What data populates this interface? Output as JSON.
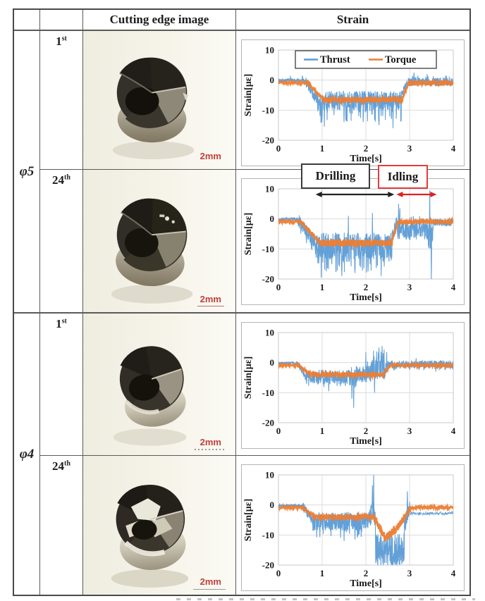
{
  "figure": {
    "header": {
      "cutting_edge": "Cutting edge image",
      "strain": "Strain"
    },
    "groups": [
      {
        "label": "φ5",
        "rows": [
          {
            "ordinal": "1",
            "suffix": "st",
            "scale": "2mm"
          },
          {
            "ordinal": "24",
            "suffix": "th",
            "scale": "2mm"
          }
        ]
      },
      {
        "label": "φ4",
        "rows": [
          {
            "ordinal": "1",
            "suffix": "st",
            "scale": "2mm"
          },
          {
            "ordinal": "24",
            "suffix": "th",
            "scale": "2mm"
          }
        ]
      }
    ]
  },
  "chart_common": {
    "ylabel": "Strain[με]",
    "xlabel": "Time[s]",
    "yticks": [
      10,
      0,
      -10,
      -20
    ],
    "xticks": [
      0,
      1,
      2,
      3,
      4
    ],
    "ylim": [
      -20,
      10
    ],
    "xlim": [
      0,
      4
    ],
    "grid": true,
    "colors": {
      "thrust": "#5B9BD5",
      "torque": "#ED7D31",
      "drilling": "#222222",
      "idling": "#E02020"
    }
  },
  "chart_data": [
    {
      "type": "line",
      "title": "phi5 1st hole strain signal",
      "legend": {
        "items": [
          "Thrust",
          "Torque"
        ],
        "position": "top-center"
      },
      "series": [
        {
          "name": "Thrust",
          "color_key": "thrust",
          "segments": [
            [
              0,
              0.62,
              -0.1,
              -0.1,
              0.6,
              0.02,
              1.8
            ],
            [
              0.62,
              0.88,
              -0.5,
              -6.5,
              1.8,
              0,
              0
            ],
            [
              0.88,
              2.82,
              -6.8,
              -6.8,
              3.2,
              0.1,
              -7.5
            ],
            [
              2.82,
              2.96,
              -5,
              -0.3,
              1.5,
              0,
              0
            ],
            [
              2.96,
              4,
              -0.6,
              -0.6,
              1.4,
              0.05,
              2.2
            ]
          ],
          "spikes": [
            {
              "t": 1.05,
              "y": -15.5
            },
            {
              "t": 1.5,
              "y": -14
            },
            {
              "t": 2.3,
              "y": -15
            },
            {
              "t": 2.62,
              "y": -16
            },
            {
              "t": 0.55,
              "y": 1.5
            },
            {
              "t": 3.1,
              "y": 2.5
            },
            {
              "t": 3.4,
              "y": 2
            }
          ]
        },
        {
          "name": "Torque",
          "color_key": "torque",
          "segments": [
            [
              0,
              0.66,
              -0.9,
              -0.9,
              0.35,
              0,
              0
            ],
            [
              0.66,
              1.02,
              -0.9,
              -6.2,
              0.6,
              0,
              0
            ],
            [
              1.02,
              2.84,
              -6.5,
              -6.5,
              0.9,
              0,
              0
            ],
            [
              2.84,
              2.98,
              -6,
              -0.9,
              0.5,
              0,
              0
            ],
            [
              2.98,
              4,
              -0.9,
              -0.9,
              0.8,
              0,
              0
            ]
          ],
          "spikes": []
        }
      ]
    },
    {
      "type": "line",
      "title": "phi5 24th hole strain signal",
      "annotations": {
        "drilling_label": "Drilling",
        "idling_label": "Idling",
        "drilling_span_s": [
          0.85,
          2.65
        ],
        "idling_span_s": [
          2.7,
          3.62
        ]
      },
      "series": [
        {
          "name": "Thrust",
          "color_key": "thrust",
          "segments": [
            [
              0,
              0.45,
              -0.1,
              -0.1,
              0.5,
              0,
              0
            ],
            [
              0.45,
              0.85,
              -0.5,
              -8,
              2.2,
              0.05,
              -4
            ],
            [
              0.85,
              2.6,
              -9,
              -9,
              4.5,
              0.13,
              -9
            ],
            [
              2.6,
              2.72,
              -6,
              -0.5,
              2,
              0,
              0
            ],
            [
              2.72,
              3.42,
              -4,
              -4,
              3.2,
              0.07,
              5
            ],
            [
              3.42,
              3.54,
              -6,
              -6,
              5,
              0,
              0
            ],
            [
              3.54,
              4,
              -1.2,
              -1.2,
              1.3,
              0,
              0
            ]
          ],
          "spikes": [
            {
              "t": 0.98,
              "y": -19.5
            },
            {
              "t": 1.45,
              "y": -19
            },
            {
              "t": 1.75,
              "y": -18
            },
            {
              "t": 2.05,
              "y": -17.5
            },
            {
              "t": 2.35,
              "y": -19
            },
            {
              "t": 1.6,
              "y": 1
            },
            {
              "t": 2.15,
              "y": 2
            },
            {
              "t": 2.75,
              "y": 5
            },
            {
              "t": 2.78,
              "y": 3.5
            },
            {
              "t": 3.46,
              "y": 9.5
            },
            {
              "t": 3.5,
              "y": -20
            }
          ]
        },
        {
          "name": "Torque",
          "color_key": "torque",
          "segments": [
            [
              0,
              0.5,
              -0.9,
              -0.9,
              0.35,
              0,
              0
            ],
            [
              0.5,
              0.95,
              -0.9,
              -7.8,
              0.7,
              0,
              0
            ],
            [
              0.95,
              2.6,
              -8,
              -8,
              1.1,
              0,
              0
            ],
            [
              2.6,
              2.74,
              -7,
              -0.9,
              0.6,
              0,
              0
            ],
            [
              2.74,
              4,
              -0.9,
              -0.9,
              0.7,
              0,
              0
            ]
          ],
          "spikes": []
        }
      ]
    },
    {
      "type": "line",
      "title": "phi4 1st hole strain signal",
      "series": [
        {
          "name": "Thrust",
          "color_key": "thrust",
          "segments": [
            [
              0,
              0.45,
              -0.2,
              -0.2,
              0.5,
              0,
              0
            ],
            [
              0.45,
              0.62,
              -0.5,
              -4.5,
              1.2,
              0,
              0
            ],
            [
              0.62,
              1.6,
              -4.8,
              -4.8,
              2.4,
              0.05,
              -3.5
            ],
            [
              1.6,
              1.78,
              -5,
              -5,
              3.5,
              0,
              0
            ],
            [
              1.78,
              2.12,
              -3.8,
              -3.8,
              2.8,
              0.07,
              5
            ],
            [
              2.12,
              2.48,
              -2.5,
              -2.5,
              3.2,
              0.1,
              7
            ],
            [
              2.48,
              4,
              -0.6,
              -0.6,
              1.3,
              0.04,
              -2
            ]
          ],
          "spikes": [
            {
              "t": 1.72,
              "y": -15
            },
            {
              "t": 1.68,
              "y": -12
            },
            {
              "t": 1.15,
              "y": -9.5
            },
            {
              "t": 2.0,
              "y": 3.5
            },
            {
              "t": 2.3,
              "y": 5
            },
            {
              "t": 2.37,
              "y": 5.5
            },
            {
              "t": 2.2,
              "y": -10
            },
            {
              "t": 3.15,
              "y": 1.5
            },
            {
              "t": 3.6,
              "y": -3
            }
          ]
        },
        {
          "name": "Torque",
          "color_key": "torque",
          "segments": [
            [
              0,
              0.46,
              -0.9,
              -0.9,
              0.3,
              0,
              0
            ],
            [
              0.46,
              0.7,
              -0.9,
              -3.8,
              0.6,
              0,
              0
            ],
            [
              0.7,
              2.42,
              -4,
              -4,
              0.8,
              0,
              0
            ],
            [
              2.42,
              2.56,
              -3.5,
              -0.9,
              0.5,
              0,
              0
            ],
            [
              2.56,
              4,
              -0.9,
              -0.9,
              0.5,
              0,
              0
            ]
          ],
          "spikes": []
        }
      ]
    },
    {
      "type": "line",
      "title": "phi4 24th hole strain signal",
      "series": [
        {
          "name": "Thrust",
          "color_key": "thrust",
          "segments": [
            [
              0,
              0.55,
              -0.2,
              -0.2,
              0.5,
              0,
              0
            ],
            [
              0.55,
              0.78,
              -0.5,
              -5,
              1.6,
              0,
              0
            ],
            [
              0.78,
              2.08,
              -5.5,
              -5.5,
              3.2,
              0.07,
              -6
            ],
            [
              2.08,
              2.22,
              -3,
              -3,
              4,
              0,
              0
            ],
            [
              2.22,
              2.88,
              -14.5,
              -14.5,
              5.5,
              0.12,
              -6
            ],
            [
              2.88,
              3.02,
              -7,
              -0.5,
              3,
              0,
              0
            ],
            [
              3.02,
              4,
              -2.8,
              -2.8,
              0.5,
              0,
              0,
              1
            ]
          ],
          "spikes": [
            {
              "t": 2.18,
              "y": 10
            },
            {
              "t": 2.15,
              "y": 6.5
            },
            {
              "t": 1.5,
              "y": -12
            },
            {
              "t": 1.75,
              "y": -11.5
            },
            {
              "t": 2.4,
              "y": -20
            },
            {
              "t": 2.5,
              "y": -20
            },
            {
              "t": 2.6,
              "y": -20
            },
            {
              "t": 2.72,
              "y": -19.5
            },
            {
              "t": 2.95,
              "y": 4.5
            }
          ]
        },
        {
          "name": "Torque",
          "color_key": "torque",
          "segments": [
            [
              0,
              0.55,
              -0.9,
              -0.9,
              0.3,
              0,
              0
            ],
            [
              0.55,
              0.8,
              -0.9,
              -3.8,
              0.6,
              0,
              0
            ],
            [
              0.8,
              2.2,
              -4,
              -4,
              0.9,
              0,
              0
            ],
            [
              2.2,
              2.45,
              -4.5,
              -11,
              1.3,
              0,
              0
            ],
            [
              2.45,
              2.7,
              -11,
              -8,
              1.4,
              0,
              0
            ],
            [
              2.7,
              3.02,
              -8,
              -1,
              1.1,
              0,
              0
            ],
            [
              3.02,
              4,
              -0.9,
              -0.9,
              0.45,
              0,
              0
            ]
          ],
          "spikes": []
        }
      ]
    }
  ]
}
